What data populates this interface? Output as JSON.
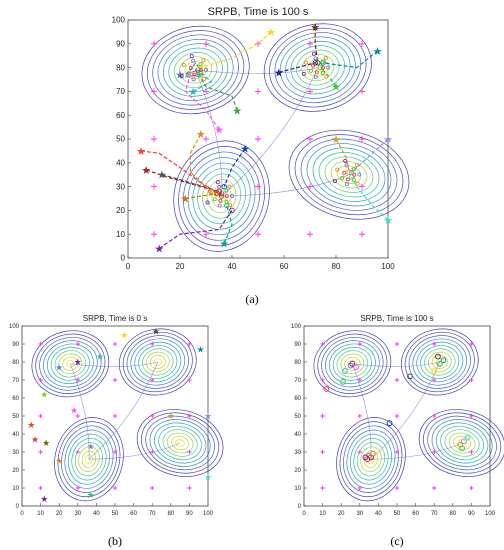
{
  "figure": {
    "panels": [
      {
        "label": "(a)"
      },
      {
        "label": "(b)"
      },
      {
        "label": "(c)"
      }
    ]
  },
  "chart_data": [
    {
      "type": "scatter",
      "title": "SRPB, Time is 100 s",
      "xlim": [
        0,
        100
      ],
      "ylim": [
        0,
        100
      ],
      "xticks": [
        0,
        20,
        40,
        60,
        80,
        100
      ],
      "yticks": [
        0,
        10,
        20,
        30,
        40,
        50,
        60,
        70,
        80,
        90,
        100
      ],
      "grid": false,
      "hills": [
        {
          "x": 26,
          "y": 79,
          "sx": 8,
          "sy": 7
        },
        {
          "x": 73,
          "y": 80,
          "sx": 8,
          "sy": 7
        },
        {
          "x": 36,
          "y": 26,
          "sx": 7,
          "sy": 9
        },
        {
          "x": 85,
          "y": 35,
          "sx": 9,
          "sy": 7
        }
      ],
      "contour_levels": 10,
      "grid_markers": [
        [
          10,
          90
        ],
        [
          30,
          90
        ],
        [
          50,
          90
        ],
        [
          70,
          90
        ],
        [
          90,
          90
        ],
        [
          10,
          70
        ],
        [
          30,
          70
        ],
        [
          50,
          70
        ],
        [
          70,
          70
        ],
        [
          90,
          70
        ],
        [
          10,
          50
        ],
        [
          30,
          50
        ],
        [
          50,
          50
        ],
        [
          70,
          50
        ],
        [
          90,
          50
        ],
        [
          10,
          30
        ],
        [
          30,
          30
        ],
        [
          50,
          30
        ],
        [
          70,
          30
        ],
        [
          90,
          30
        ],
        [
          10,
          10
        ],
        [
          30,
          10
        ],
        [
          50,
          10
        ],
        [
          70,
          10
        ],
        [
          90,
          10
        ]
      ],
      "series": [
        {
          "color": "#5b7fd6",
          "start": [
            20,
            77
          ],
          "path": [
            [
              20,
              77
            ],
            [
              28,
              79
            ],
            [
              26,
              82
            ],
            [
              22,
              76
            ],
            [
              27,
              77
            ]
          ]
        },
        {
          "color": "#3aa63a",
          "start": [
            42,
            62
          ],
          "path": [
            [
              42,
              62
            ],
            [
              40,
              68
            ],
            [
              30,
              72
            ],
            [
              26,
              79
            ],
            [
              27,
              79
            ]
          ]
        },
        {
          "color": "#ff55ff",
          "start": [
            35,
            54
          ],
          "path": [
            [
              35,
              54
            ],
            [
              30,
              62
            ],
            [
              22,
              70
            ],
            [
              24,
              77
            ]
          ]
        },
        {
          "color": "#ffd700",
          "start": [
            55,
            95
          ],
          "path": [
            [
              55,
              95
            ],
            [
              50,
              90
            ],
            [
              40,
              84
            ],
            [
              28,
              80
            ]
          ]
        },
        {
          "color": "#2db7b7",
          "start": [
            25,
            70
          ],
          "path": [
            [
              25,
              70
            ],
            [
              32,
              74
            ],
            [
              28,
              78
            ]
          ]
        },
        {
          "color": "#5a3a10",
          "start": [
            72,
            97
          ],
          "path": [
            [
              72,
              97
            ],
            [
              72,
              90
            ],
            [
              73,
              82
            ]
          ]
        },
        {
          "color": "#1a1a8c",
          "start": [
            58,
            78
          ],
          "path": [
            [
              58,
              78
            ],
            [
              65,
              80
            ],
            [
              72,
              82
            ]
          ]
        },
        {
          "color": "#0088aa",
          "start": [
            96,
            87
          ],
          "path": [
            [
              96,
              87
            ],
            [
              88,
              80
            ],
            [
              75,
              82
            ]
          ]
        },
        {
          "color": "#33cc33",
          "start": [
            80,
            72
          ],
          "path": [
            [
              80,
              72
            ],
            [
              76,
              78
            ],
            [
              74,
              80
            ]
          ]
        },
        {
          "color": "#ff3333",
          "start": [
            5,
            45
          ],
          "path": [
            [
              5,
              45
            ],
            [
              12,
              44
            ],
            [
              20,
              38
            ],
            [
              30,
              30
            ],
            [
              36,
              27
            ]
          ]
        },
        {
          "color": "#aa2222",
          "start": [
            7,
            37
          ],
          "path": [
            [
              7,
              37
            ],
            [
              15,
              34
            ],
            [
              28,
              30
            ],
            [
              35,
              28
            ]
          ]
        },
        {
          "color": "#555555",
          "start": [
            13,
            35
          ],
          "path": [
            [
              13,
              35
            ],
            [
              20,
              33
            ],
            [
              32,
              29
            ],
            [
              36,
              26
            ]
          ]
        },
        {
          "color": "#e08a1e",
          "start": [
            28,
            52
          ],
          "path": [
            [
              28,
              52
            ],
            [
              24,
              44
            ],
            [
              24,
              36
            ],
            [
              32,
              28
            ]
          ]
        },
        {
          "color": "#00a0a0",
          "start": [
            37,
            6
          ],
          "path": [
            [
              37,
              6
            ],
            [
              40,
              14
            ],
            [
              38,
              22
            ]
          ]
        },
        {
          "color": "#7a1fa2",
          "start": [
            12,
            4
          ],
          "path": [
            [
              12,
              4
            ],
            [
              20,
              10
            ],
            [
              35,
              12
            ],
            [
              40,
              20
            ]
          ]
        },
        {
          "color": "#0044cc",
          "start": [
            45,
            46
          ],
          "path": [
            [
              45,
              46
            ],
            [
              40,
              38
            ],
            [
              37,
              30
            ]
          ]
        },
        {
          "color": "#d4a017",
          "start": [
            80,
            50
          ],
          "path": [
            [
              80,
              50
            ],
            [
              84,
              42
            ],
            [
              85,
              36
            ]
          ]
        },
        {
          "color": "#9090ff",
          "start": [
            100,
            50
          ],
          "path": [
            [
              100,
              50
            ],
            [
              92,
              42
            ],
            [
              86,
              36
            ]
          ]
        },
        {
          "color": "#40e0d0",
          "start": [
            100,
            16
          ],
          "path": [
            [
              100,
              16
            ],
            [
              94,
              22
            ],
            [
              88,
              30
            ],
            [
              86,
              34
            ]
          ]
        },
        {
          "color": "#cc7700",
          "start": [
            22,
            25
          ],
          "path": [
            [
              22,
              25
            ],
            [
              28,
              26
            ],
            [
              34,
              27
            ]
          ]
        }
      ]
    },
    {
      "type": "scatter",
      "title": "SRPB, Time is 0 s",
      "xlim": [
        0,
        100
      ],
      "ylim": [
        0,
        100
      ],
      "xticks": [
        0,
        10,
        20,
        30,
        40,
        50,
        60,
        70,
        80,
        90,
        100
      ],
      "yticks": [
        0,
        10,
        20,
        30,
        40,
        50,
        60,
        70,
        80,
        90,
        100
      ],
      "grid": false,
      "agents_star": [
        {
          "x": 20,
          "y": 77,
          "color": "#5b7fd6"
        },
        {
          "x": 30,
          "y": 80,
          "color": "#7a1fa2"
        },
        {
          "x": 42,
          "y": 83,
          "color": "#2db7b7"
        },
        {
          "x": 55,
          "y": 95,
          "color": "#ffd700"
        },
        {
          "x": 72,
          "y": 97,
          "color": "#5a3a10"
        },
        {
          "x": 96,
          "y": 87,
          "color": "#0088aa"
        },
        {
          "x": 12,
          "y": 62,
          "color": "#88cc22"
        },
        {
          "x": 28,
          "y": 53,
          "color": "#ff55ff"
        },
        {
          "x": 80,
          "y": 50,
          "color": "#d4a017"
        },
        {
          "x": 100,
          "y": 50,
          "color": "#9090ff"
        },
        {
          "x": 5,
          "y": 45,
          "color": "#ff3333"
        },
        {
          "x": 7,
          "y": 37,
          "color": "#cc4444"
        },
        {
          "x": 13,
          "y": 35,
          "color": "#8a5a00"
        },
        {
          "x": 37,
          "y": 33,
          "color": "#7788aa"
        },
        {
          "x": 20,
          "y": 25,
          "color": "#e08a1e"
        },
        {
          "x": 37,
          "y": 6,
          "color": "#33cc55"
        },
        {
          "x": 12,
          "y": 4,
          "color": "#7a1fa2"
        },
        {
          "x": 100,
          "y": 16,
          "color": "#40e0d0"
        }
      ],
      "agents_circle": []
    },
    {
      "type": "scatter",
      "title": "SRPB, Time is 100 s",
      "xlim": [
        0,
        100
      ],
      "ylim": [
        0,
        100
      ],
      "xticks": [
        0,
        10,
        20,
        30,
        40,
        50,
        60,
        70,
        80,
        90,
        100
      ],
      "yticks": [
        0,
        10,
        20,
        30,
        40,
        50,
        60,
        70,
        80,
        90,
        100
      ],
      "grid": false,
      "agents_star": [],
      "agents_circle": [
        {
          "x": 25,
          "y": 78,
          "color": "#5b7fd6"
        },
        {
          "x": 26,
          "y": 79,
          "color": "#7a1fa2"
        },
        {
          "x": 22,
          "y": 75,
          "color": "#2db7b7"
        },
        {
          "x": 28,
          "y": 77,
          "color": "#ff55ff"
        },
        {
          "x": 21,
          "y": 69,
          "color": "#33cc33"
        },
        {
          "x": 12,
          "y": 65,
          "color": "#ff3333"
        },
        {
          "x": 57,
          "y": 72,
          "color": "#444444"
        },
        {
          "x": 72,
          "y": 83,
          "color": "#5a3a10"
        },
        {
          "x": 75,
          "y": 81,
          "color": "#0088aa"
        },
        {
          "x": 73,
          "y": 79,
          "color": "#33cc33"
        },
        {
          "x": 70,
          "y": 75,
          "color": "#ffd700"
        },
        {
          "x": 46,
          "y": 46,
          "color": "#0044cc"
        },
        {
          "x": 34,
          "y": 26,
          "color": "#ff3333"
        },
        {
          "x": 36,
          "y": 27,
          "color": "#aa2222"
        },
        {
          "x": 35,
          "y": 28,
          "color": "#7788aa"
        },
        {
          "x": 37,
          "y": 29,
          "color": "#e08a1e"
        },
        {
          "x": 33,
          "y": 27,
          "color": "#7a1fa2"
        },
        {
          "x": 84,
          "y": 34,
          "color": "#d4a017"
        },
        {
          "x": 86,
          "y": 36,
          "color": "#9090ff"
        },
        {
          "x": 88,
          "y": 38,
          "color": "#40e0d0"
        },
        {
          "x": 85,
          "y": 32,
          "color": "#33cc55"
        }
      ]
    }
  ]
}
